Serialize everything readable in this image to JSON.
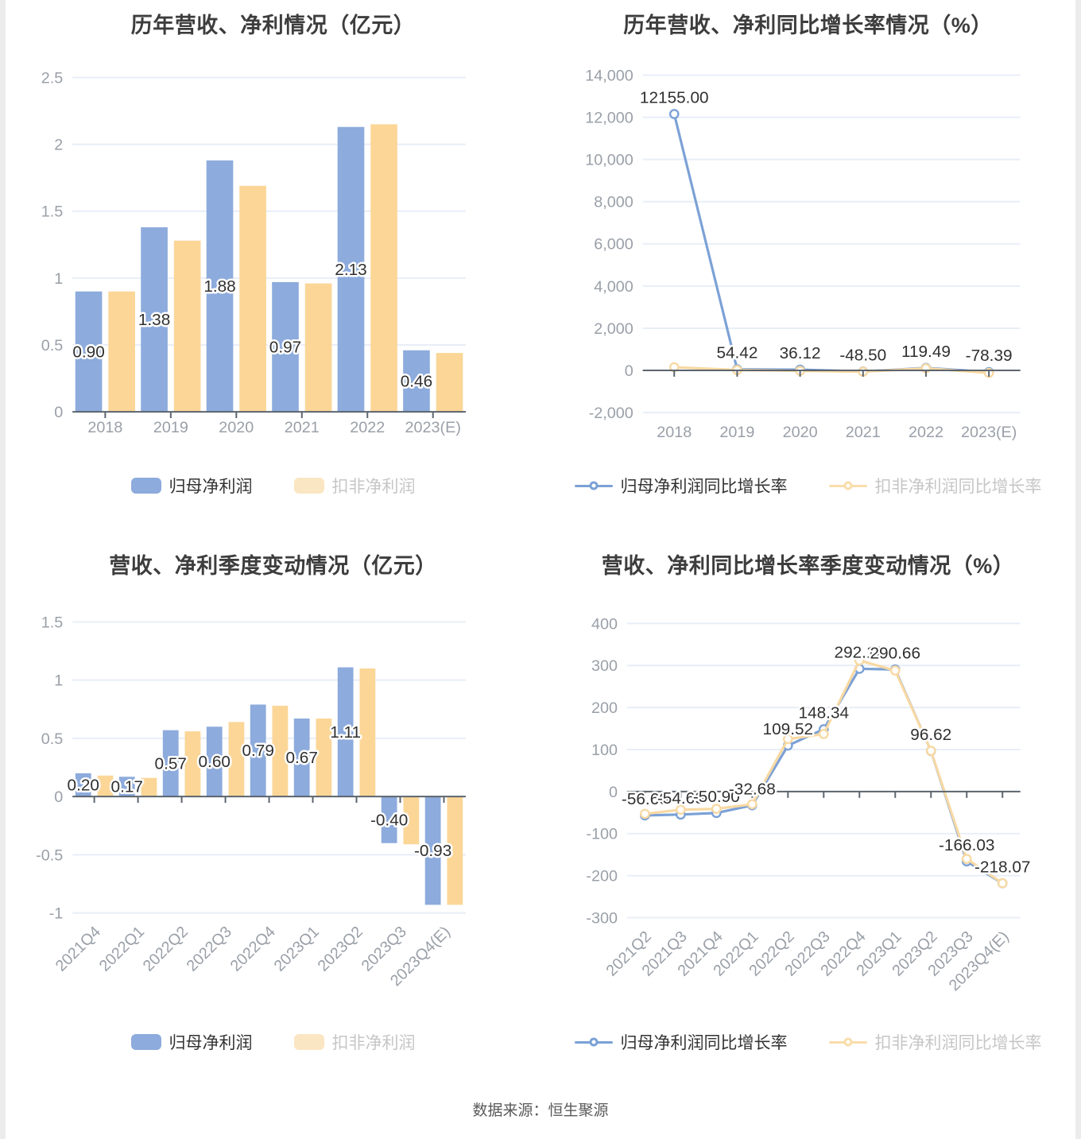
{
  "footer": {
    "source_note": "数据来源：恒生聚源"
  },
  "colors": {
    "grid": "#e8eef7",
    "axis": "#5c646e",
    "tick_text": "#9aa0a8",
    "title_text": "#3d3d3d",
    "blue_bar": "#8dabdc",
    "yellow_bar": "#fbd697",
    "blue_line": "#7ba1d6",
    "yellow_line": "#f8d9a3"
  },
  "chart_data": [
    {
      "type": "bar",
      "title": "历年营收、净利情况（亿元）",
      "categories": [
        "2018",
        "2019",
        "2020",
        "2021",
        "2022",
        "2023(E)"
      ],
      "ylim": [
        0,
        2.5
      ],
      "grid": true,
      "legend_position": "bottom",
      "yticks": [
        {
          "v": 0,
          "t": "0"
        },
        {
          "v": 0.5,
          "t": "0.5"
        },
        {
          "v": 1,
          "t": "1"
        },
        {
          "v": 1.5,
          "t": "1.5"
        },
        {
          "v": 2,
          "t": "2"
        },
        {
          "v": 2.5,
          "t": "2.5"
        }
      ],
      "series": [
        {
          "name": "归母净利润",
          "color": "#8dabdc",
          "legend_color": "#8dabdc",
          "legend_text_color": "#333333",
          "values": [
            0.9,
            1.38,
            1.88,
            0.97,
            2.13,
            0.46
          ]
        },
        {
          "name": "扣非净利润",
          "color": "#fbd697",
          "legend_color": "#fbe6c3",
          "legend_text_color": "#c6c6c6",
          "values": [
            0.9,
            1.28,
            1.69,
            0.96,
            2.15,
            0.44
          ]
        }
      ],
      "data_labels": {
        "series": 0,
        "position": "inside",
        "texts": [
          "0.90",
          "1.38",
          "1.88",
          "0.97",
          "2.13",
          "0.46"
        ]
      }
    },
    {
      "type": "line",
      "title": "历年营收、净利同比增长率情况（%）",
      "categories": [
        "2018",
        "2019",
        "2020",
        "2021",
        "2022",
        "2023(E)"
      ],
      "ylim": [
        -2000,
        14000
      ],
      "grid": true,
      "legend_position": "bottom",
      "yticks": [
        {
          "v": -2000,
          "t": "-2,000"
        },
        {
          "v": 0,
          "t": "0"
        },
        {
          "v": 2000,
          "t": "2,000"
        },
        {
          "v": 4000,
          "t": "4,000"
        },
        {
          "v": 6000,
          "t": "6,000"
        },
        {
          "v": 8000,
          "t": "8,000"
        },
        {
          "v": 10000,
          "t": "10,000"
        },
        {
          "v": 12000,
          "t": "12,000"
        },
        {
          "v": 14000,
          "t": "14,000"
        }
      ],
      "series": [
        {
          "name": "归母净利润同比增长率",
          "color": "#7ba1d6",
          "legend_color": "#7ba1d6",
          "legend_text_color": "#333333",
          "values": [
            12155.0,
            54.42,
            36.12,
            -48.5,
            119.49,
            -78.39
          ]
        },
        {
          "name": "扣非净利润同比增长率",
          "color": "#f8d9a3",
          "legend_color": "#f9ddab",
          "legend_text_color": "#c6c6c6",
          "values": [
            150,
            20,
            -20,
            -60,
            100,
            -120
          ]
        }
      ],
      "data_labels": {
        "series": 0,
        "position": "above",
        "texts": [
          "12155.00",
          "54.42",
          "36.12",
          "-48.50",
          "119.49",
          "-78.39"
        ]
      }
    },
    {
      "type": "bar",
      "title": "营收、净利季度变动情况（亿元）",
      "categories": [
        "2021Q4",
        "2022Q1",
        "2022Q2",
        "2022Q3",
        "2022Q4",
        "2023Q1",
        "2023Q2",
        "2023Q3",
        "2023Q4(E)"
      ],
      "ylim": [
        -1,
        1.5
      ],
      "grid": true,
      "legend_position": "bottom",
      "yticks": [
        {
          "v": -1,
          "t": "-1"
        },
        {
          "v": -0.5,
          "t": "-0.5"
        },
        {
          "v": 0,
          "t": "0"
        },
        {
          "v": 0.5,
          "t": "0.5"
        },
        {
          "v": 1,
          "t": "1"
        },
        {
          "v": 1.5,
          "t": "1.5"
        }
      ],
      "series": [
        {
          "name": "归母净利润",
          "color": "#8dabdc",
          "legend_color": "#8dabdc",
          "legend_text_color": "#333333",
          "values": [
            0.2,
            0.17,
            0.57,
            0.6,
            0.79,
            0.67,
            1.11,
            -0.4,
            -0.93
          ]
        },
        {
          "name": "扣非净利润",
          "color": "#fbd697",
          "legend_color": "#fbe6c3",
          "legend_text_color": "#c6c6c6",
          "values": [
            0.18,
            0.16,
            0.56,
            0.64,
            0.78,
            0.67,
            1.1,
            -0.41,
            -0.93
          ]
        }
      ],
      "data_labels": {
        "series": 0,
        "position": "inside",
        "texts": [
          "0.20",
          "0.17",
          "0.57",
          "0.60",
          "0.79",
          "0.67",
          "1.11",
          "-0.40",
          "-0.93"
        ]
      }
    },
    {
      "type": "line",
      "title": "营收、净利同比增长率季度变动情况（%）",
      "categories": [
        "2021Q2",
        "2021Q3",
        "2021Q4",
        "2022Q1",
        "2022Q2",
        "2022Q3",
        "2022Q4",
        "2023Q1",
        "2023Q2",
        "2023Q3",
        "2023Q4(E)"
      ],
      "ylim": [
        -300,
        400
      ],
      "grid": true,
      "legend_position": "bottom",
      "yticks": [
        {
          "v": -300,
          "t": "-300"
        },
        {
          "v": -200,
          "t": "-200"
        },
        {
          "v": -100,
          "t": "-100"
        },
        {
          "v": 0,
          "t": "0"
        },
        {
          "v": 100,
          "t": "100"
        },
        {
          "v": 200,
          "t": "200"
        },
        {
          "v": 300,
          "t": "300"
        },
        {
          "v": 400,
          "t": "400"
        }
      ],
      "series": [
        {
          "name": "归母净利润同比增长率",
          "color": "#7ba1d6",
          "legend_color": "#7ba1d6",
          "legend_text_color": "#333333",
          "values": [
            -56.6,
            -54.69,
            -50.9,
            -32.68,
            109.52,
            148.34,
            292.12,
            290.66,
            96.62,
            -166.03,
            -218.07
          ]
        },
        {
          "name": "扣非净利润同比增长率",
          "color": "#f8d9a3",
          "legend_color": "#f9ddab",
          "legend_text_color": "#c6c6c6",
          "values": [
            -53,
            -43,
            -41,
            -30,
            125,
            137,
            312,
            288,
            97,
            -160,
            -218
          ]
        }
      ],
      "data_labels": {
        "series": 0,
        "position": "above",
        "texts": [
          "-56.60",
          "-54.69",
          "-50.90",
          "-32.68",
          "109.52",
          "148.34",
          "292.12",
          "290.66",
          "96.62",
          "-166.03",
          "-218.07"
        ]
      }
    }
  ]
}
